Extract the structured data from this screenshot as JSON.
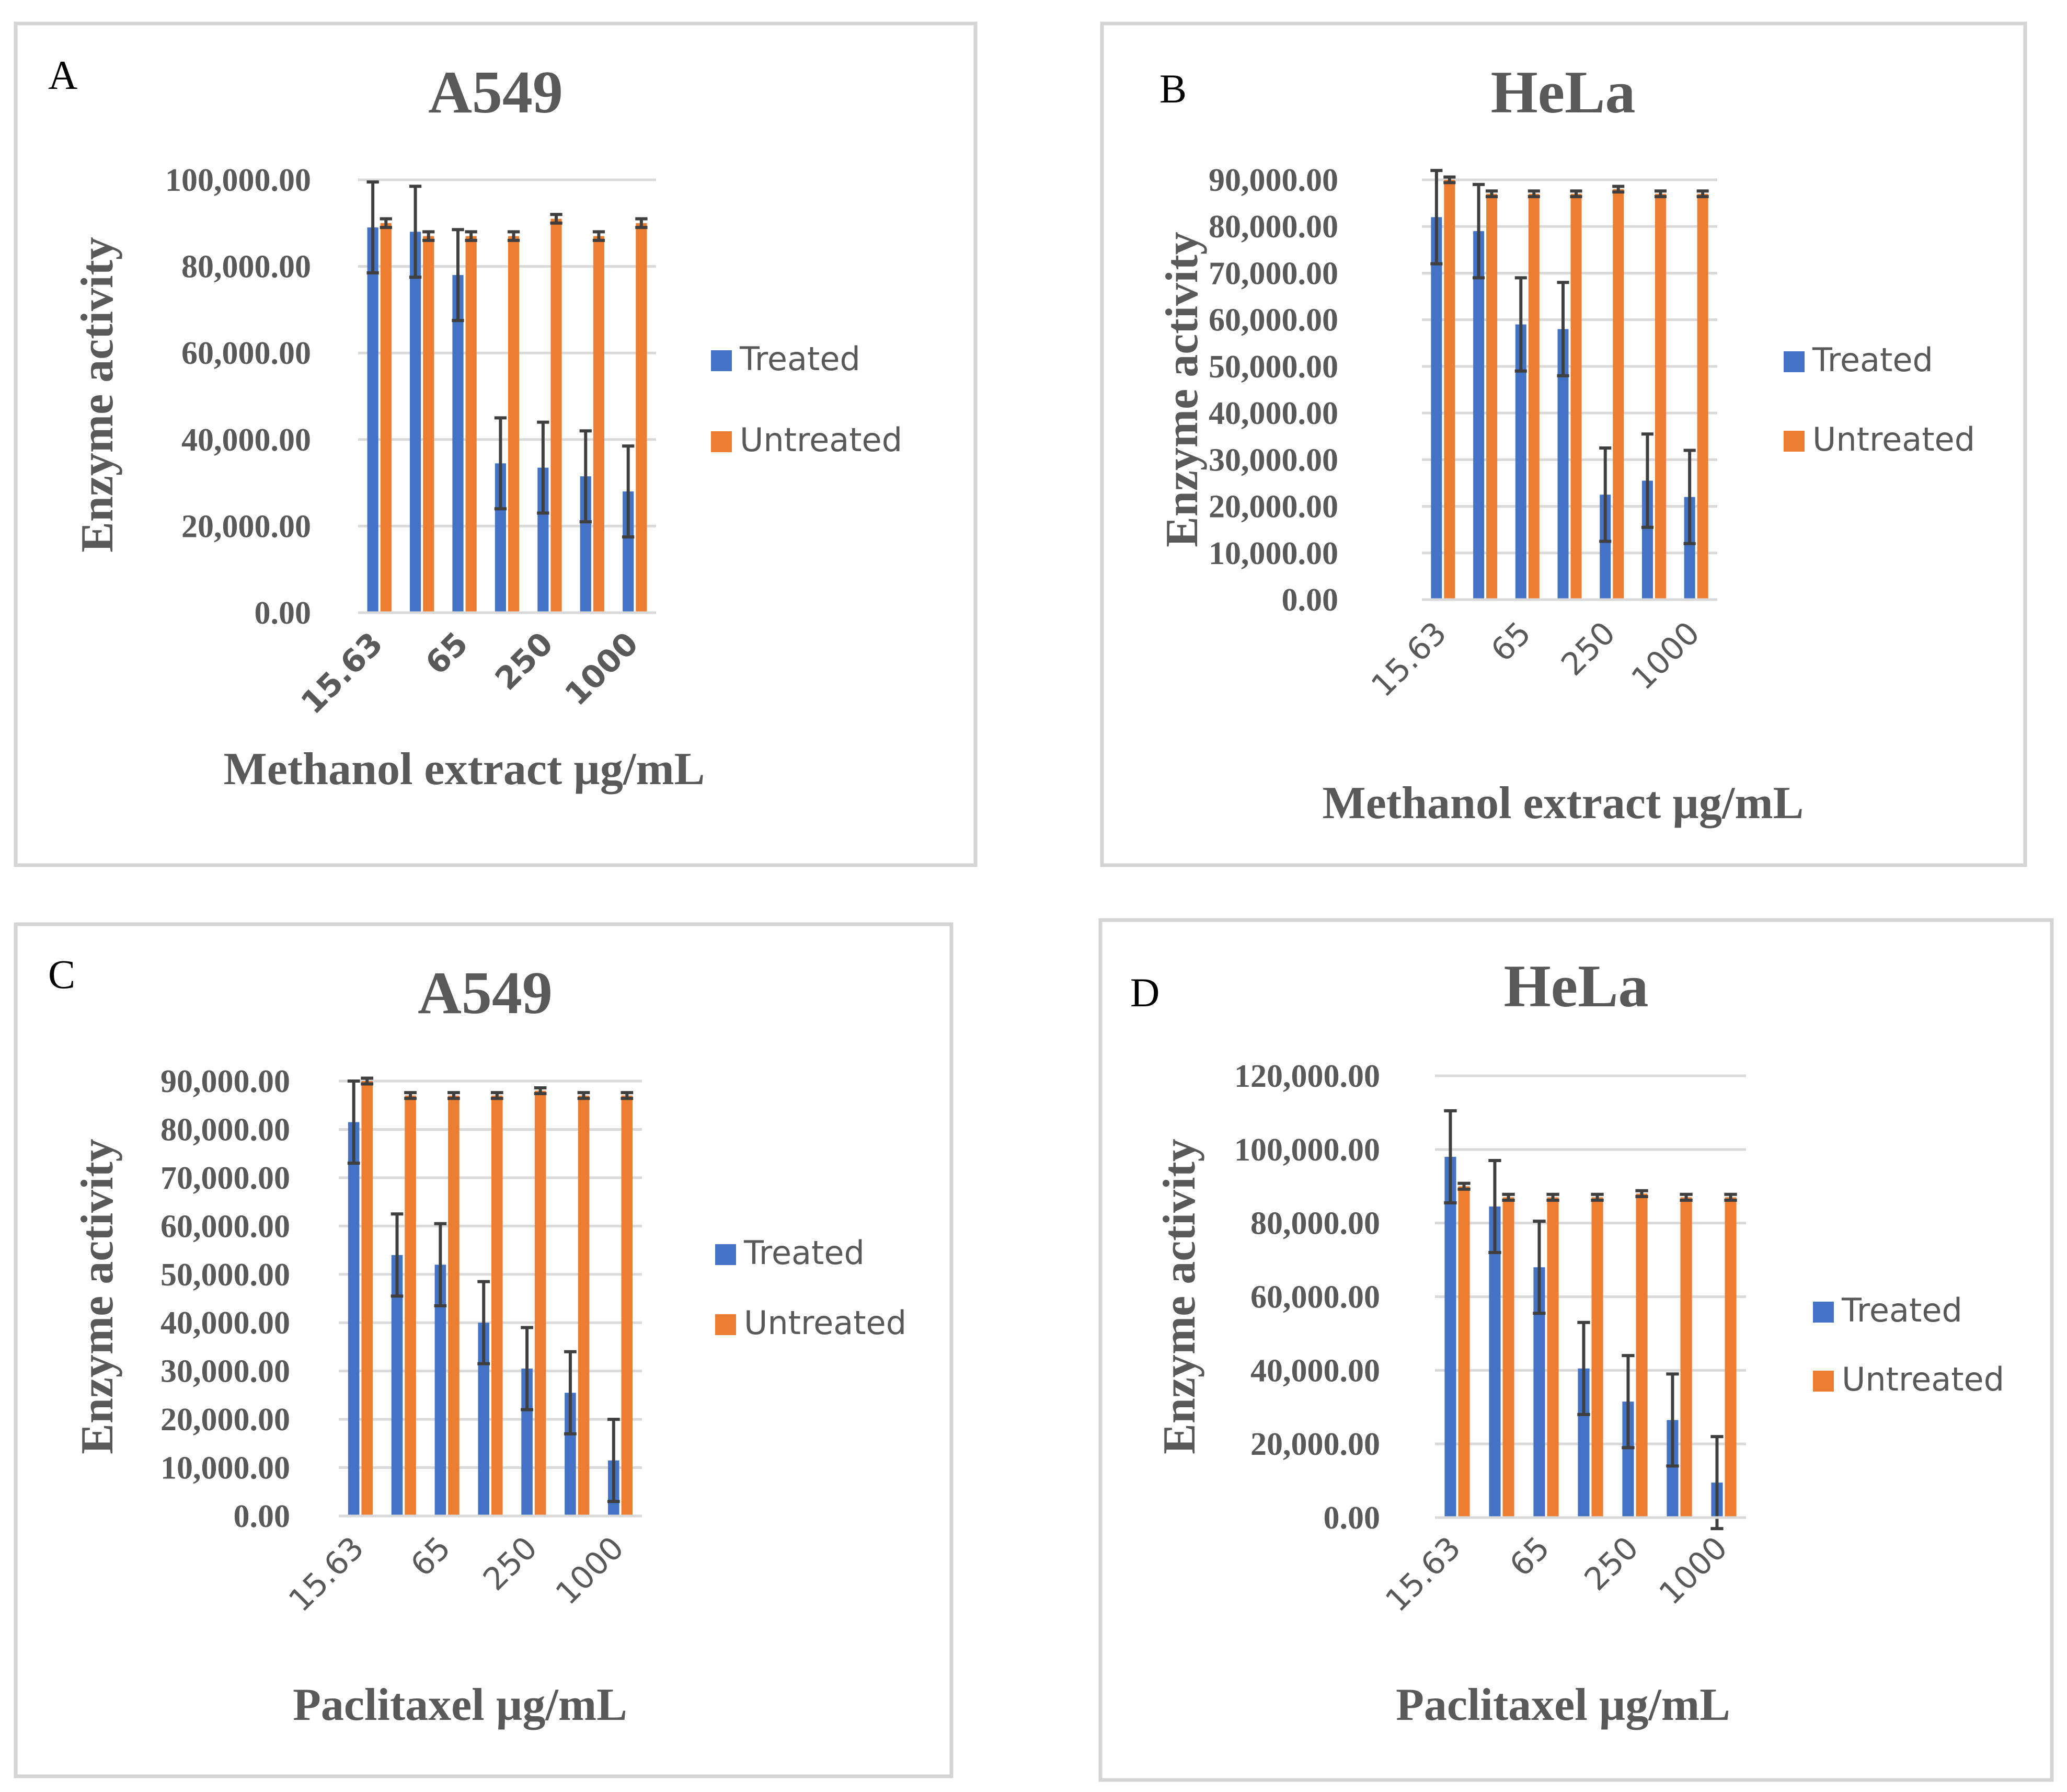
{
  "colors": {
    "treated": "#4472c4",
    "untreated": "#ed7d31"
  },
  "chart_data": [
    {
      "panel": "A",
      "type": "bar",
      "title": "A549",
      "xlabel": "Methanol extract µg/mL",
      "ylabel": "Enzyme activity",
      "categories": [
        "15.63",
        "",
        "65",
        "",
        "250",
        "",
        "1000"
      ],
      "ylim": [
        0,
        100000
      ],
      "yticks": [
        "0.00",
        "20,000.00",
        "40,000.00",
        "60,000.00",
        "80,000.00",
        "100,000.00"
      ],
      "ytick_values": [
        0,
        20000,
        40000,
        60000,
        80000,
        100000
      ],
      "legend_position": "right",
      "series": [
        {
          "name": "Treated",
          "values": [
            89000,
            88000,
            78000,
            34500,
            33500,
            31500,
            28000
          ],
          "errors": [
            10500,
            10500,
            10500,
            10500,
            10500,
            10500,
            10500
          ]
        },
        {
          "name": "Untreated",
          "values": [
            90000,
            87000,
            87000,
            87000,
            91000,
            87000,
            90000
          ],
          "errors": [
            1000,
            1000,
            1000,
            1000,
            1000,
            1000,
            1000
          ]
        }
      ]
    },
    {
      "panel": "B",
      "type": "bar",
      "title": "HeLa",
      "xlabel": "Methanol extract µg/mL",
      "ylabel": "Enzyme activity",
      "categories": [
        "15.63",
        "",
        "65",
        "",
        "250",
        "",
        "1000"
      ],
      "ylim": [
        0,
        90000
      ],
      "yticks": [
        "0.00",
        "10,000.00",
        "20,000.00",
        "30,000.00",
        "40,000.00",
        "50,000.00",
        "60,000.00",
        "70,000.00",
        "80,000.00",
        "90,000.00"
      ],
      "ytick_values": [
        0,
        10000,
        20000,
        30000,
        40000,
        50000,
        60000,
        70000,
        80000,
        90000
      ],
      "legend_position": "right",
      "series": [
        {
          "name": "Treated",
          "values": [
            82000,
            79000,
            59000,
            58000,
            22500,
            25500,
            22000
          ],
          "errors": [
            10000,
            10000,
            10000,
            10000,
            10000,
            10000,
            10000
          ]
        },
        {
          "name": "Untreated",
          "values": [
            90000,
            87000,
            87000,
            87000,
            88000,
            87000,
            87000
          ],
          "errors": [
            600,
            600,
            600,
            600,
            600,
            600,
            600
          ]
        }
      ]
    },
    {
      "panel": "C",
      "type": "bar",
      "title": "A549",
      "xlabel": "Paclitaxel µg/mL",
      "ylabel": "Enzyme activity",
      "categories": [
        "15.63",
        "",
        "65",
        "",
        "250",
        "",
        "1000"
      ],
      "ylim": [
        0,
        90000
      ],
      "yticks": [
        "0.00",
        "10,000.00",
        "20,000.00",
        "30,000.00",
        "40,000.00",
        "50,000.00",
        "60,000.00",
        "70,000.00",
        "80,000.00",
        "90,000.00"
      ],
      "ytick_values": [
        0,
        10000,
        20000,
        30000,
        40000,
        50000,
        60000,
        70000,
        80000,
        90000
      ],
      "legend_position": "right",
      "series": [
        {
          "name": "Treated",
          "values": [
            81500,
            54000,
            52000,
            40000,
            30500,
            25500,
            11500
          ],
          "errors": [
            8500,
            8500,
            8500,
            8500,
            8500,
            8500,
            8500
          ]
        },
        {
          "name": "Untreated",
          "values": [
            90000,
            87000,
            87000,
            87000,
            88000,
            87000,
            87000
          ],
          "errors": [
            600,
            600,
            600,
            600,
            600,
            600,
            600
          ]
        }
      ]
    },
    {
      "panel": "D",
      "type": "bar",
      "title": "HeLa",
      "xlabel": "Paclitaxel µg/mL",
      "ylabel": "Enzyme activity",
      "categories": [
        "15.63",
        "",
        "65",
        "",
        "250",
        "",
        "1000"
      ],
      "ylim": [
        0,
        120000
      ],
      "yticks": [
        "0.00",
        "20,000.00",
        "40,000.00",
        "60,000.00",
        "80,000.00",
        "100,000.00",
        "120,000.00"
      ],
      "ytick_values": [
        0,
        20000,
        40000,
        60000,
        80000,
        100000,
        120000
      ],
      "legend_position": "right",
      "series": [
        {
          "name": "Treated",
          "values": [
            98000,
            84500,
            68000,
            40500,
            31500,
            26500,
            9500
          ],
          "errors": [
            12500,
            12500,
            12500,
            12500,
            12500,
            12500,
            12500
          ]
        },
        {
          "name": "Untreated",
          "values": [
            90000,
            87000,
            87000,
            87000,
            88000,
            87000,
            87000
          ],
          "errors": [
            800,
            800,
            800,
            800,
            800,
            800,
            800
          ]
        }
      ]
    }
  ]
}
